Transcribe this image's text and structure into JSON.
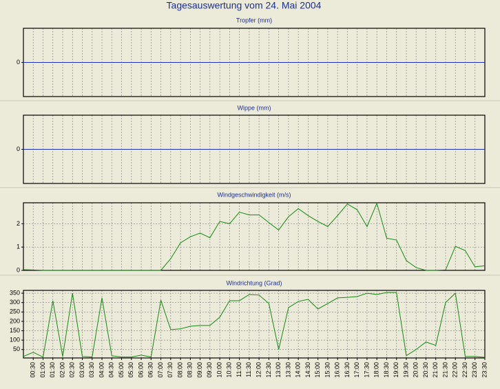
{
  "title": "Tagesauswertung vom 24. Mai 2004",
  "chart_data": [
    {
      "type": "line",
      "title": "Tropfer (mm)",
      "color": "#1f2fb8",
      "ylim": [
        -1,
        1
      ],
      "yticks": [
        0
      ],
      "grid": true,
      "values": [
        0,
        0,
        0,
        0,
        0,
        0,
        0,
        0,
        0,
        0,
        0,
        0,
        0,
        0,
        0,
        0,
        0,
        0,
        0,
        0,
        0,
        0,
        0,
        0,
        0,
        0,
        0,
        0,
        0,
        0,
        0,
        0,
        0,
        0,
        0,
        0,
        0,
        0,
        0,
        0,
        0,
        0,
        0,
        0,
        0,
        0,
        0,
        0
      ]
    },
    {
      "type": "line",
      "title": "Wippe (mm)",
      "color": "#1f2fb8",
      "ylim": [
        -1,
        1
      ],
      "yticks": [
        0
      ],
      "grid": true,
      "values": [
        0,
        0,
        0,
        0,
        0,
        0,
        0,
        0,
        0,
        0,
        0,
        0,
        0,
        0,
        0,
        0,
        0,
        0,
        0,
        0,
        0,
        0,
        0,
        0,
        0,
        0,
        0,
        0,
        0,
        0,
        0,
        0,
        0,
        0,
        0,
        0,
        0,
        0,
        0,
        0,
        0,
        0,
        0,
        0,
        0,
        0,
        0,
        0
      ]
    },
    {
      "type": "line",
      "title": "Windgeschwindigkeit (m/s)",
      "color": "#138a13",
      "ylim": [
        0,
        2.9
      ],
      "yticks": [
        0,
        1,
        2
      ],
      "grid": true,
      "values": [
        0.03,
        0.02,
        0,
        0,
        0,
        0,
        0,
        0,
        0,
        0,
        0,
        0,
        0,
        0,
        0,
        0.5,
        1.18,
        1.44,
        1.6,
        1.4,
        2.1,
        2.0,
        2.5,
        2.38,
        2.38,
        2.05,
        1.73,
        2.3,
        2.65,
        2.35,
        2.1,
        1.88,
        2.35,
        2.85,
        2.6,
        1.88,
        2.88,
        1.38,
        1.3,
        0.42,
        0.12,
        0,
        0,
        0.02,
        1.03,
        0.85,
        0.15,
        0.2
      ]
    },
    {
      "type": "line",
      "title": "Windrichtung (Grad)",
      "color": "#138a13",
      "ylim": [
        5,
        365
      ],
      "yticks": [
        50,
        100,
        150,
        200,
        250,
        300,
        350
      ],
      "grid": true,
      "categories": [
        null,
        "00:30",
        "01:00",
        "01:30",
        "02:00",
        "02:30",
        "03:00",
        "03:30",
        "04:00",
        "04:30",
        "05:00",
        "05:30",
        "06:00",
        "06:30",
        "07:00",
        "07:30",
        "08:00",
        "08:30",
        "09:00",
        "09:30",
        "10:00",
        "10:30",
        "11:00",
        "11:30",
        "12:00",
        "12:30",
        "13:00",
        "13:30",
        "14:00",
        "14:30",
        "15:00",
        "15:30",
        "16:00",
        "16:30",
        "17:00",
        "17:30",
        "18:00",
        "18:30",
        "19:00",
        "19:30",
        "20:00",
        "20:30",
        "21:00",
        "21:30",
        "22:00",
        "22:30",
        "23:00",
        "23:30"
      ],
      "values": [
        13,
        35,
        10,
        310,
        13,
        350,
        13,
        10,
        325,
        17,
        10,
        10,
        20,
        10,
        313,
        156,
        160,
        174,
        178,
        178,
        222,
        310,
        310,
        343,
        340,
        295,
        50,
        273,
        306,
        317,
        266,
        295,
        325,
        328,
        332,
        350,
        343,
        354,
        354,
        17,
        50,
        90,
        72,
        300,
        350,
        13,
        13,
        8
      ]
    }
  ]
}
